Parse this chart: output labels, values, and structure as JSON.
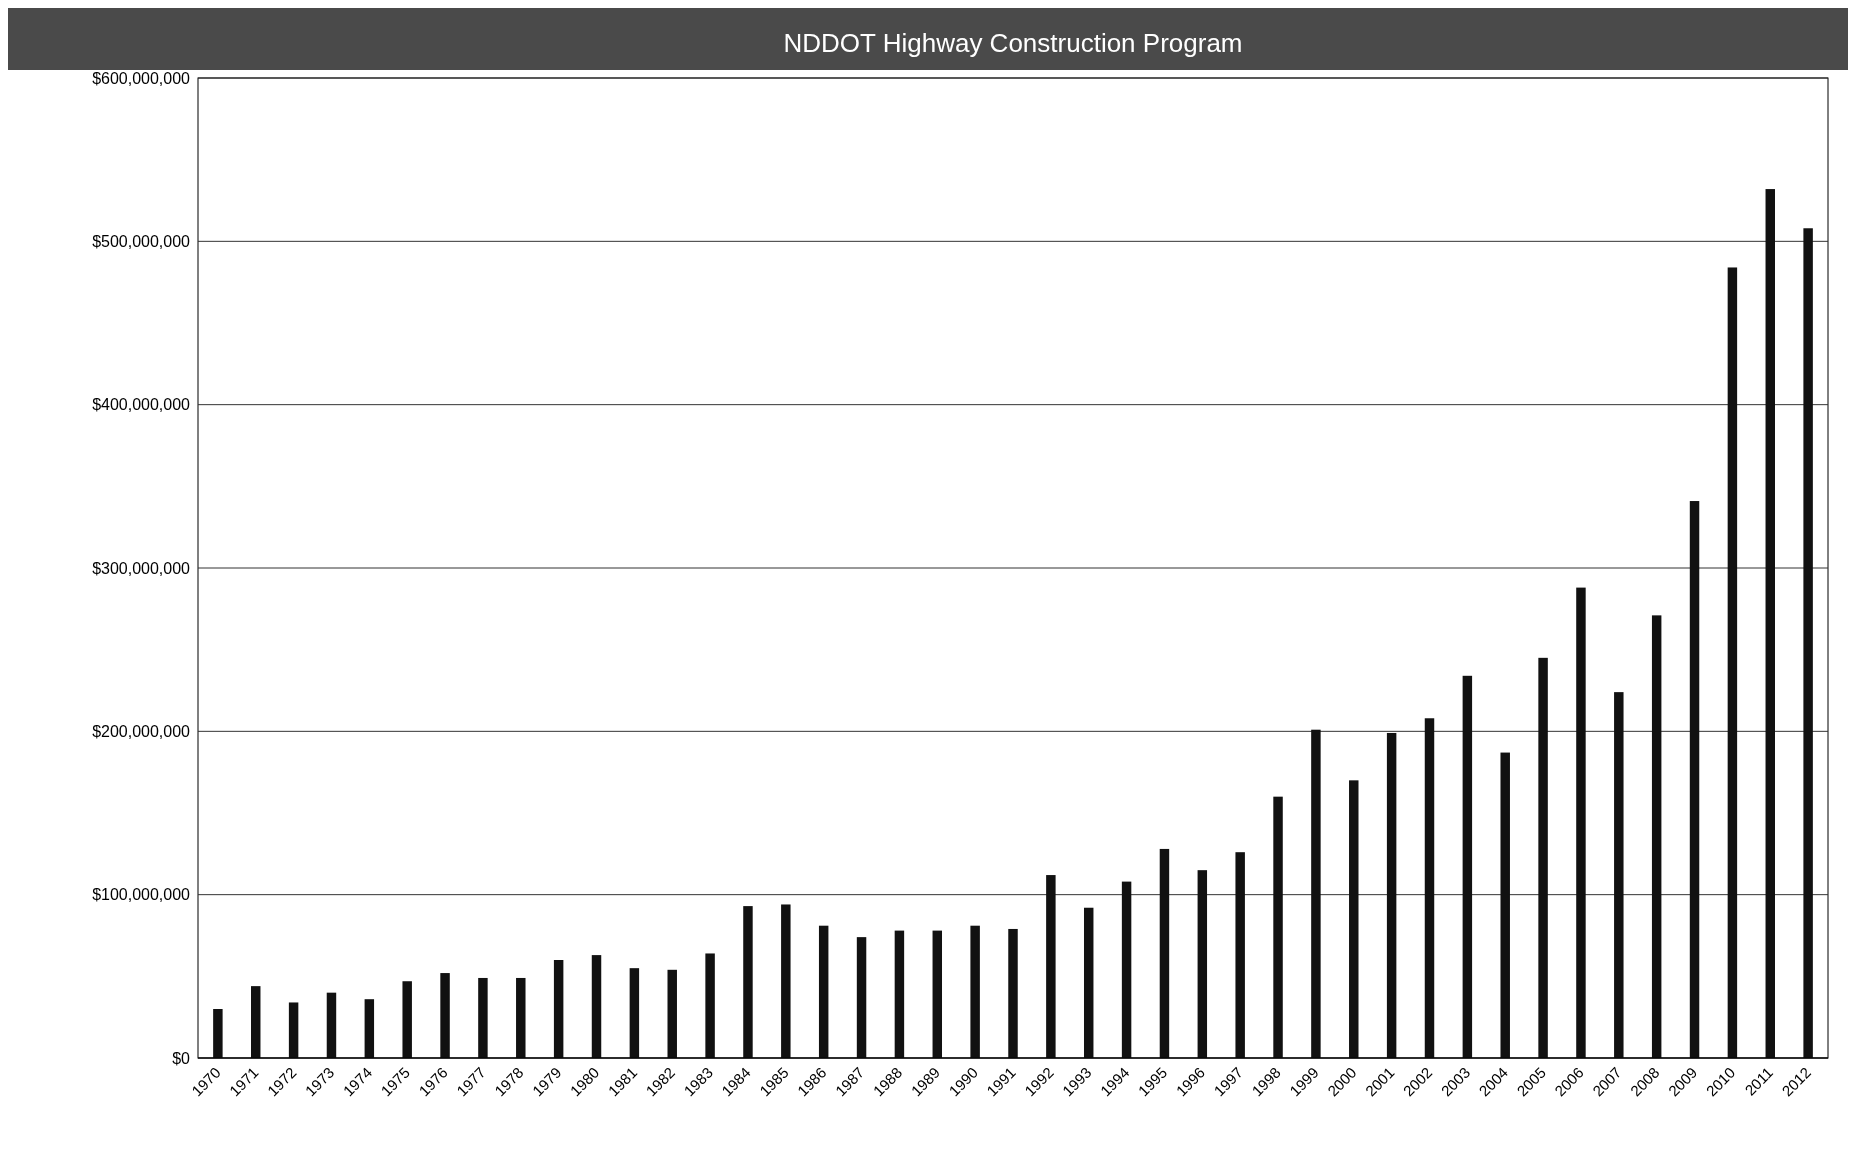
{
  "chart_data": {
    "type": "bar",
    "title": "NDDOT Highway Construction Program",
    "categories": [
      "1970",
      "1971",
      "1972",
      "1973",
      "1974",
      "1975",
      "1976",
      "1977",
      "1978",
      "1979",
      "1980",
      "1981",
      "1982",
      "1983",
      "1984",
      "1985",
      "1986",
      "1987",
      "1988",
      "1989",
      "1990",
      "1991",
      "1992",
      "1993",
      "1994",
      "1995",
      "1996",
      "1997",
      "1998",
      "1999",
      "2000",
      "2001",
      "2002",
      "2003",
      "2004",
      "2005",
      "2006",
      "2007",
      "2008",
      "2009",
      "2010",
      "2011",
      "2012"
    ],
    "values": [
      30000000,
      44000000,
      34000000,
      40000000,
      36000000,
      47000000,
      52000000,
      49000000,
      49000000,
      60000000,
      63000000,
      55000000,
      54000000,
      64000000,
      93000000,
      94000000,
      81000000,
      74000000,
      78000000,
      78000000,
      81000000,
      79000000,
      112000000,
      92000000,
      108000000,
      128000000,
      115000000,
      126000000,
      160000000,
      201000000,
      170000000,
      199000000,
      208000000,
      234000000,
      187000000,
      245000000,
      288000000,
      224000000,
      271000000,
      341000000,
      484000000,
      532000000,
      508000000
    ],
    "color": "#111111",
    "ylim": [
      0,
      600000000
    ],
    "yticks": [
      {
        "value": 0,
        "label": "$0"
      },
      {
        "value": 100000000,
        "label": "$100,000,000"
      },
      {
        "value": 200000000,
        "label": "$200,000,000"
      },
      {
        "value": 300000000,
        "label": "$300,000,000"
      },
      {
        "value": 400000000,
        "label": "$400,000,000"
      },
      {
        "value": 500000000,
        "label": "$500,000,000"
      },
      {
        "value": 600000000,
        "label": "$600,000,000"
      }
    ],
    "grid": "y"
  }
}
